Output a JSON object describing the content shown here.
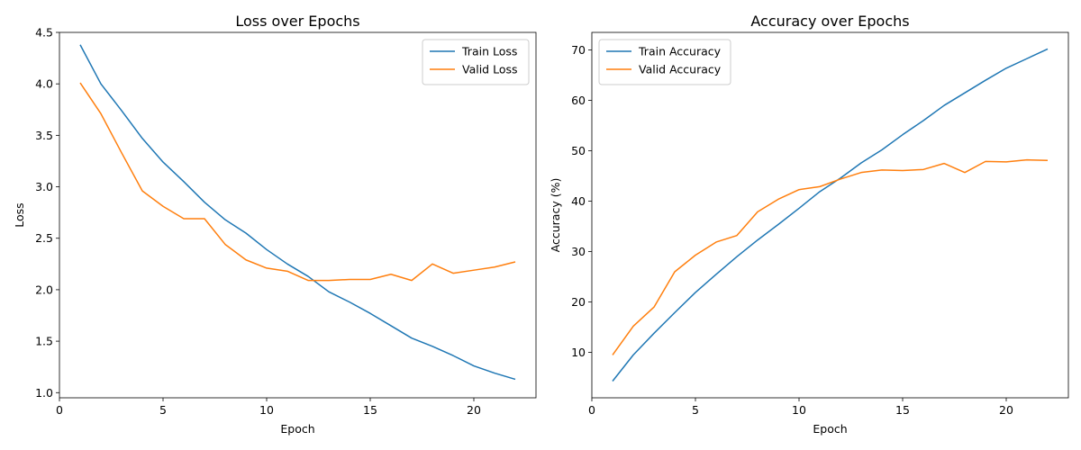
{
  "chart_data": [
    {
      "type": "line",
      "title": "Loss over Epochs",
      "xlabel": "Epoch",
      "ylabel": "Loss",
      "xlim": [
        0,
        23
      ],
      "ylim": [
        0.95,
        4.5
      ],
      "xticks": [
        0,
        5,
        10,
        15,
        20
      ],
      "yticks": [
        1.0,
        1.5,
        2.0,
        2.5,
        3.0,
        3.5,
        4.0,
        4.5
      ],
      "ytick_labels": [
        "1.0",
        "1.5",
        "2.0",
        "2.5",
        "3.0",
        "3.5",
        "4.0",
        "4.5"
      ],
      "legend_position": "top-right",
      "grid": false,
      "x": [
        1,
        2,
        3,
        4,
        5,
        6,
        7,
        8,
        9,
        10,
        11,
        12,
        13,
        14,
        15,
        16,
        17,
        18,
        19,
        20,
        21,
        22
      ],
      "series": [
        {
          "name": "Train Loss",
          "color": "#1f77b4",
          "values": [
            4.38,
            4.0,
            3.74,
            3.47,
            3.24,
            3.05,
            2.85,
            2.68,
            2.55,
            2.39,
            2.25,
            2.13,
            1.98,
            1.88,
            1.77,
            1.65,
            1.53,
            1.45,
            1.36,
            1.26,
            1.19,
            1.13
          ]
        },
        {
          "name": "Valid Loss",
          "color": "#ff7f0e",
          "values": [
            4.01,
            3.71,
            3.33,
            2.96,
            2.81,
            2.69,
            2.69,
            2.44,
            2.29,
            2.21,
            2.18,
            2.09,
            2.09,
            2.1,
            2.1,
            2.15,
            2.09,
            2.25,
            2.16,
            2.19,
            2.22,
            2.27
          ]
        }
      ]
    },
    {
      "type": "line",
      "title": "Accuracy over Epochs",
      "xlabel": "Epoch",
      "ylabel": "Accuracy (%)",
      "xlim": [
        0,
        23
      ],
      "ylim": [
        1.0,
        73.5
      ],
      "xticks": [
        0,
        5,
        10,
        15,
        20
      ],
      "yticks": [
        10,
        20,
        30,
        40,
        50,
        60,
        70
      ],
      "ytick_labels": [
        "10",
        "20",
        "30",
        "40",
        "50",
        "60",
        "70"
      ],
      "legend_position": "top-left",
      "grid": false,
      "x": [
        1,
        2,
        3,
        4,
        5,
        6,
        7,
        8,
        9,
        10,
        11,
        12,
        13,
        14,
        15,
        16,
        17,
        18,
        19,
        20,
        21,
        22
      ],
      "series": [
        {
          "name": "Train Accuracy",
          "color": "#1f77b4",
          "values": [
            4.3,
            9.5,
            13.8,
            17.9,
            21.9,
            25.5,
            29.0,
            32.3,
            35.4,
            38.6,
            41.9,
            44.6,
            47.6,
            50.2,
            53.2,
            56.0,
            59.0,
            61.5,
            64.0,
            66.4,
            68.3,
            70.2
          ]
        },
        {
          "name": "Valid Accuracy",
          "color": "#ff7f0e",
          "values": [
            9.5,
            15.2,
            19.0,
            26.0,
            29.3,
            31.9,
            33.2,
            37.9,
            40.4,
            42.3,
            42.9,
            44.4,
            45.7,
            46.2,
            46.1,
            46.3,
            47.5,
            45.7,
            47.9,
            47.8,
            48.2,
            48.1
          ]
        }
      ]
    }
  ]
}
